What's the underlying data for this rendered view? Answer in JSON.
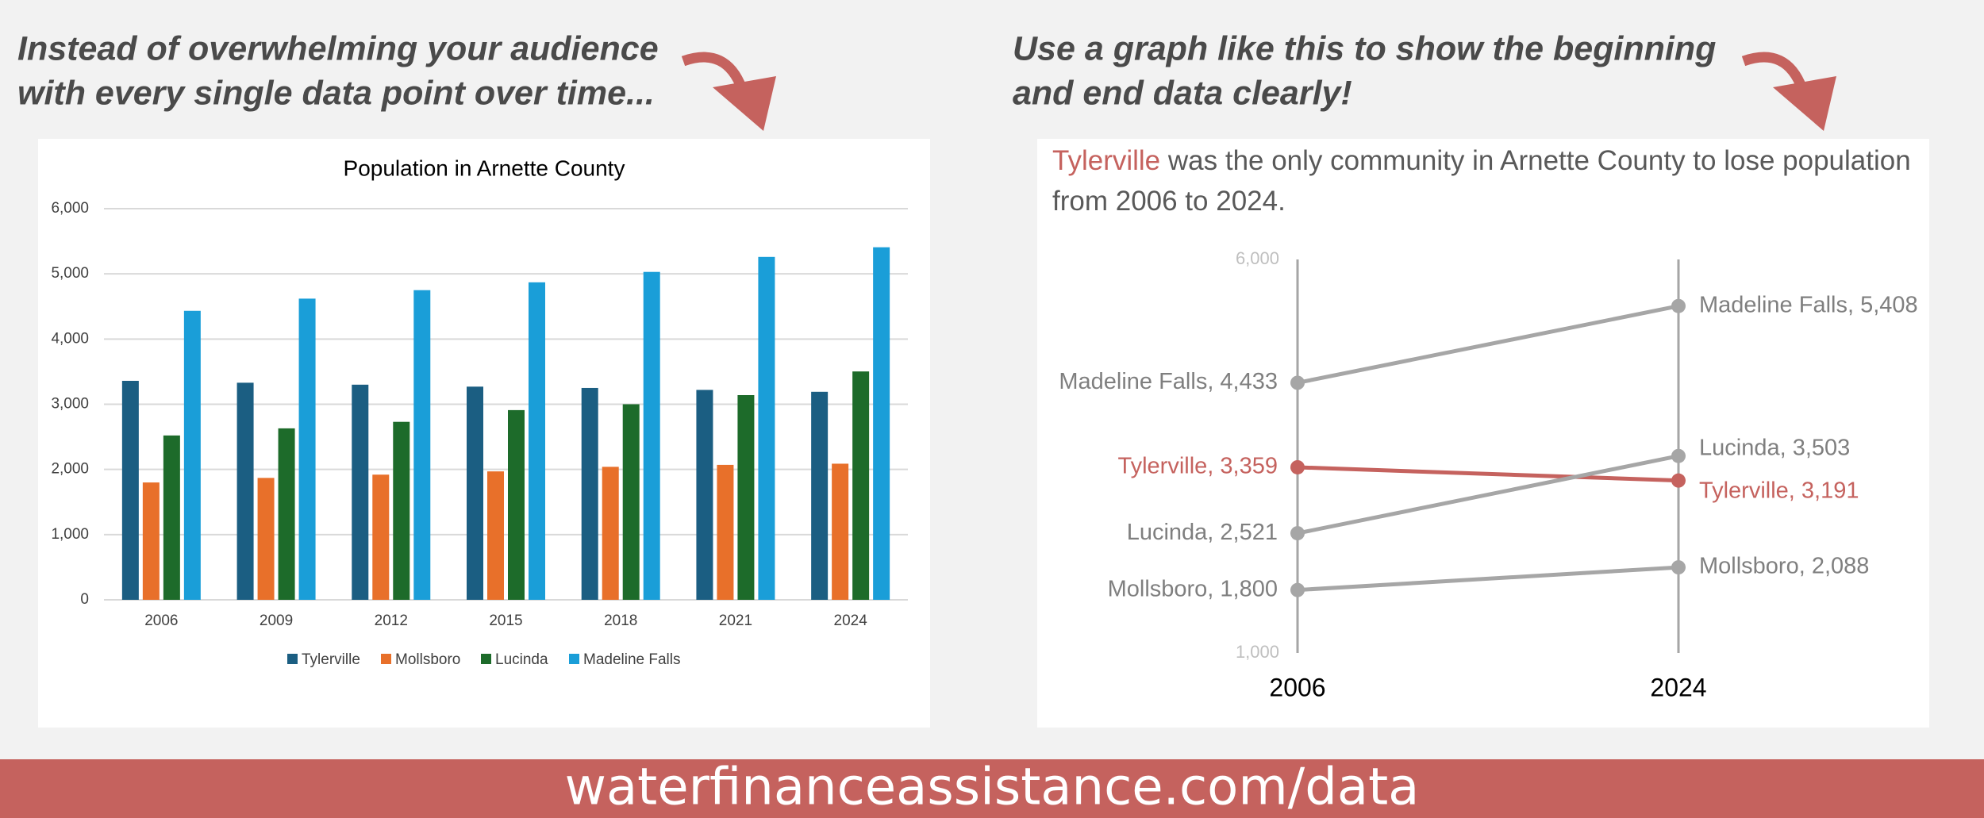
{
  "left_heading": [
    "Instead of overwhelming your audience",
    "with every single data point over time..."
  ],
  "right_heading": [
    "Use a graph like this to  show the beginning",
    "and end data clearly!"
  ],
  "footer": "waterfinanceassistance.com/data",
  "chart_data": [
    {
      "type": "bar",
      "title": "Population in Arnette County",
      "categories": [
        "2006",
        "2009",
        "2012",
        "2015",
        "2018",
        "2021",
        "2024"
      ],
      "series": [
        {
          "name": "Tylerville",
          "color": "#1b5e82",
          "values": [
            3359,
            3330,
            3300,
            3270,
            3250,
            3220,
            3191
          ]
        },
        {
          "name": "Mollsboro",
          "color": "#e8702a",
          "values": [
            1800,
            1870,
            1920,
            1970,
            2040,
            2070,
            2088
          ]
        },
        {
          "name": "Lucinda",
          "color": "#1d6b2a",
          "values": [
            2521,
            2630,
            2730,
            2910,
            3000,
            3140,
            3503
          ]
        },
        {
          "name": "Madeline Falls",
          "color": "#1a9ed8",
          "values": [
            4433,
            4620,
            4750,
            4870,
            5030,
            5260,
            5408
          ]
        }
      ],
      "ylim": [
        0,
        6000
      ],
      "yticks": [
        0,
        {
          "value": 1000,
          "label": "1,000"
        },
        {
          "value": 2000,
          "label": "2,000"
        },
        {
          "value": 3000,
          "label": "3,000"
        },
        {
          "value": 4000,
          "label": "4,000"
        },
        {
          "value": 5000,
          "label": "5,000"
        },
        {
          "value": 6000,
          "label": "6,000"
        }
      ],
      "grid": true,
      "legend": "bottom"
    },
    {
      "type": "slope",
      "title": [
        "Tylerville",
        "was the only community in Arnette County to lose population from 2006 to 2024."
      ],
      "categories": [
        "2006",
        "2024"
      ],
      "series": [
        {
          "name": "Madeline Falls",
          "color": "#a6a6a6",
          "values": [
            4433,
            5408
          ],
          "value_labels": [
            "Madeline Falls, 4,433",
            "Madeline Falls, 5,408"
          ]
        },
        {
          "name": "Tylerville",
          "color": "#c5625e",
          "values": [
            3359,
            3191
          ],
          "value_labels": [
            "Tylerville, 3,359",
            "Tylerville, 3,191"
          ]
        },
        {
          "name": "Lucinda",
          "color": "#a6a6a6",
          "values": [
            2521,
            3503
          ],
          "value_labels": [
            "Lucinda, 2,521",
            "Lucinda, 3,503"
          ]
        },
        {
          "name": "Mollsboro",
          "color": "#a6a6a6",
          "values": [
            1800,
            2088
          ],
          "value_labels": [
            "Mollsboro, 1,800",
            "Mollsboro, 2,088"
          ]
        }
      ],
      "ylim": [
        1000,
        6000
      ],
      "yticks": [
        {
          "value": 1000,
          "label": "1,000"
        },
        {
          "value": 6000,
          "label": "6,000"
        }
      ]
    }
  ]
}
